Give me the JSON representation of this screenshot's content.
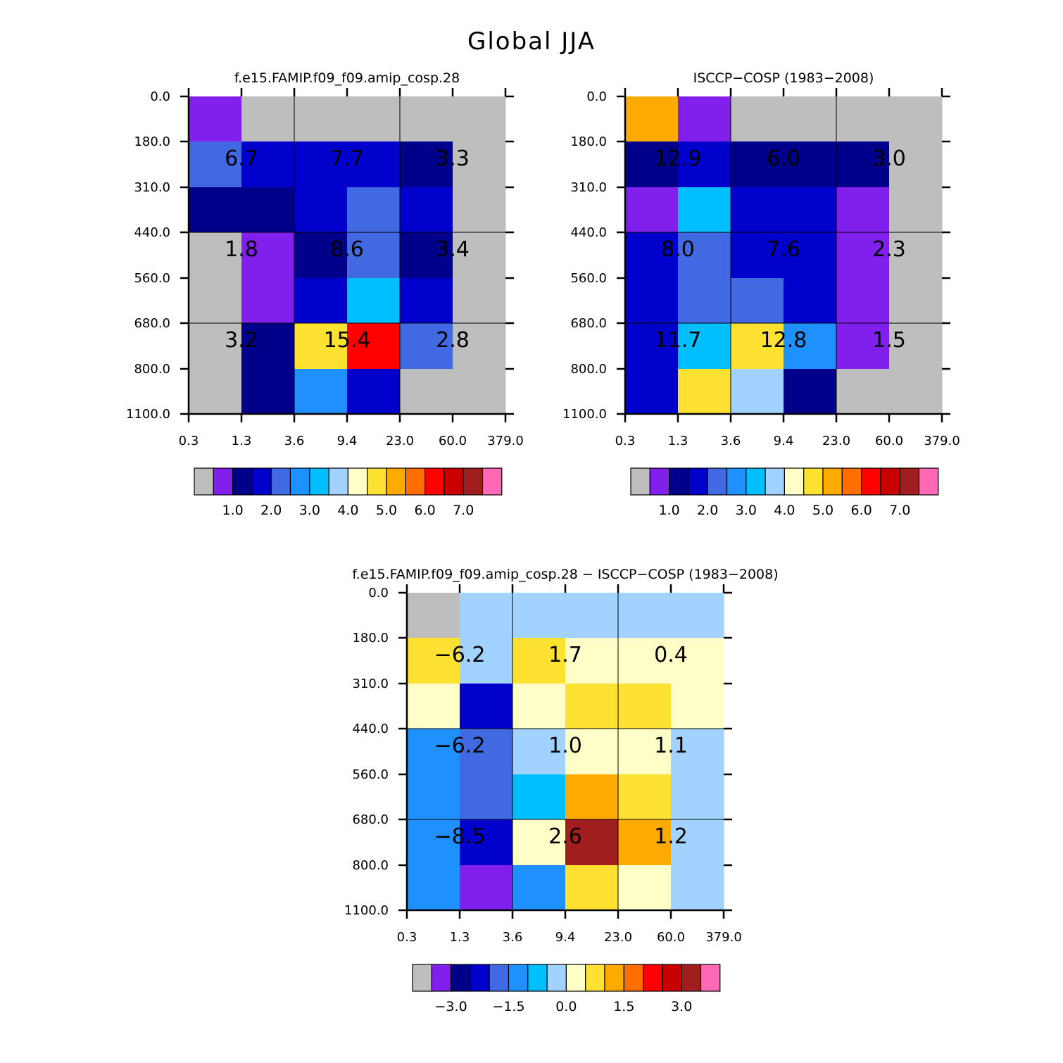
{
  "figure_title": "Global JJA",
  "chart_data": [
    {
      "type": "heatmap",
      "title": "f.e15.FAMIP.f09_f09.amip_cosp.28",
      "x_tick_labels": [
        "0.3",
        "1.3",
        "3.6",
        "9.4",
        "23.0",
        "60.0",
        "379.0"
      ],
      "y_tick_labels": [
        "0.0",
        "180.0",
        "310.0",
        "440.0",
        "560.0",
        "680.0",
        "800.0",
        "1100.0"
      ],
      "cell_colors": [
        [
          "#8120ed",
          "#bebebe",
          "#bebebe",
          "#bebebe",
          "#bebebe",
          "#bebebe"
        ],
        [
          "#4169e1",
          "#0000cd",
          "#0000cd",
          "#0000cd",
          "#00008b",
          "#bebebe"
        ],
        [
          "#00008b",
          "#00008b",
          "#0000cd",
          "#4169e1",
          "#0000cd",
          "#bebebe"
        ],
        [
          "#bebebe",
          "#8120ed",
          "#00008b",
          "#4169e1",
          "#00008b",
          "#bebebe"
        ],
        [
          "#bebebe",
          "#8120ed",
          "#0000cd",
          "#00bfff",
          "#0000cd",
          "#bebebe"
        ],
        [
          "#bebebe",
          "#00008b",
          "#ffe132",
          "#ff0000",
          "#4169e1",
          "#bebebe"
        ],
        [
          "#bebebe",
          "#00008b",
          "#1e90ff",
          "#0000cd",
          "#bebebe",
          "#bebebe"
        ]
      ],
      "block_values": [
        [
          "6.7",
          "7.7",
          "3.3"
        ],
        [
          "1.8",
          "8.6",
          "3.4"
        ],
        [
          "3.2",
          "15.4",
          "2.8"
        ]
      ],
      "colorbar": {
        "colors": [
          "#bebebe",
          "#8120ed",
          "#00008b",
          "#0000cd",
          "#4169e1",
          "#1e90ff",
          "#00bfff",
          "#a2d2ff",
          "#ffffc8",
          "#ffe132",
          "#ffaa00",
          "#ff6e00",
          "#ff0000",
          "#c80000",
          "#a01e1e",
          "#ff69b4"
        ],
        "labels": [
          "1.0",
          "2.0",
          "3.0",
          "4.0",
          "5.0",
          "6.0",
          "7.0"
        ]
      }
    },
    {
      "type": "heatmap",
      "title": "ISCCP-COSP (1983-2008)",
      "x_tick_labels": [
        "0.3",
        "1.3",
        "3.6",
        "9.4",
        "23.0",
        "60.0",
        "379.0"
      ],
      "y_tick_labels": [
        "0.0",
        "180.0",
        "310.0",
        "440.0",
        "560.0",
        "680.0",
        "800.0",
        "1100.0"
      ],
      "cell_colors": [
        [
          "#ffaa00",
          "#8120ed",
          "#bebebe",
          "#bebebe",
          "#bebebe",
          "#bebebe"
        ],
        [
          "#00008b",
          "#0000cd",
          "#00008b",
          "#00008b",
          "#00008b",
          "#bebebe"
        ],
        [
          "#8120ed",
          "#00bfff",
          "#0000cd",
          "#0000cd",
          "#8120ed",
          "#bebebe"
        ],
        [
          "#0000cd",
          "#4169e1",
          "#0000cd",
          "#0000cd",
          "#8120ed",
          "#bebebe"
        ],
        [
          "#0000cd",
          "#4169e1",
          "#4169e1",
          "#0000cd",
          "#8120ed",
          "#bebebe"
        ],
        [
          "#0000cd",
          "#00bfff",
          "#ffe132",
          "#1e90ff",
          "#8120ed",
          "#bebebe"
        ],
        [
          "#0000cd",
          "#ffe132",
          "#a2d2ff",
          "#00008b",
          "#bebebe",
          "#bebebe"
        ]
      ],
      "block_values": [
        [
          "12.9",
          "6.0",
          "3.0"
        ],
        [
          "8.0",
          "7.6",
          "2.3"
        ],
        [
          "11.7",
          "12.8",
          "1.5"
        ]
      ],
      "colorbar": {
        "colors": [
          "#bebebe",
          "#8120ed",
          "#00008b",
          "#0000cd",
          "#4169e1",
          "#1e90ff",
          "#00bfff",
          "#a2d2ff",
          "#ffffc8",
          "#ffe132",
          "#ffaa00",
          "#ff6e00",
          "#ff0000",
          "#c80000",
          "#a01e1e",
          "#ff69b4"
        ],
        "labels": [
          "1.0",
          "2.0",
          "3.0",
          "4.0",
          "5.0",
          "6.0",
          "7.0"
        ]
      }
    },
    {
      "type": "heatmap",
      "title": "f.e15.FAMIP.f09_f09.amip_cosp.28 - ISCCP-COSP (1983-2008)",
      "x_tick_labels": [
        "0.3",
        "1.3",
        "3.6",
        "9.4",
        "23.0",
        "60.0",
        "379.0"
      ],
      "y_tick_labels": [
        "0.0",
        "180.0",
        "310.0",
        "440.0",
        "560.0",
        "680.0",
        "800.0",
        "1100.0"
      ],
      "cell_colors": [
        [
          "#bebebe",
          "#a2d2ff",
          "#a2d2ff",
          "#a2d2ff",
          "#a2d2ff",
          "#a2d2ff"
        ],
        [
          "#ffe132",
          "#a2d2ff",
          "#ffe132",
          "#ffffc8",
          "#ffffc8",
          "#ffffc8"
        ],
        [
          "#ffffc8",
          "#0000cd",
          "#ffffc8",
          "#ffe132",
          "#ffe132",
          "#ffffc8"
        ],
        [
          "#1e90ff",
          "#4169e1",
          "#a2d2ff",
          "#ffffc8",
          "#ffffc8",
          "#a2d2ff"
        ],
        [
          "#1e90ff",
          "#4169e1",
          "#00bfff",
          "#ffaa00",
          "#ffe132",
          "#a2d2ff"
        ],
        [
          "#1e90ff",
          "#0000cd",
          "#ffffc8",
          "#a01e1e",
          "#ffaa00",
          "#a2d2ff"
        ],
        [
          "#1e90ff",
          "#8120ed",
          "#1e90ff",
          "#ffe132",
          "#ffffc8",
          "#a2d2ff"
        ]
      ],
      "block_values": [
        [
          "-6.2",
          "1.7",
          "0.4"
        ],
        [
          "-6.2",
          "1.0",
          "1.1"
        ],
        [
          "-8.5",
          "2.6",
          "1.2"
        ]
      ],
      "colorbar": {
        "colors": [
          "#bebebe",
          "#8120ed",
          "#00008b",
          "#0000cd",
          "#4169e1",
          "#1e90ff",
          "#00bfff",
          "#a2d2ff",
          "#ffffc8",
          "#ffe132",
          "#ffaa00",
          "#ff6e00",
          "#ff0000",
          "#c80000",
          "#a01e1e",
          "#ff69b4"
        ],
        "labels": [
          "-3.0",
          "-1.5",
          "0.0",
          "1.5",
          "3.0"
        ]
      }
    }
  ]
}
